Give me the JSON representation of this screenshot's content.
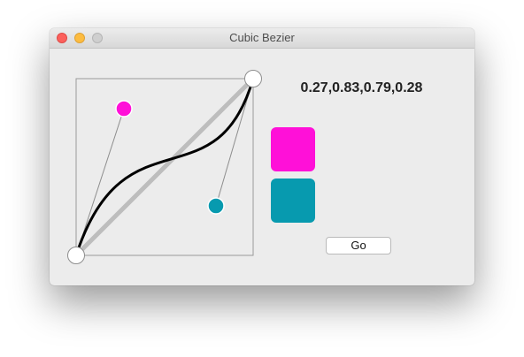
{
  "window": {
    "title": "Cubic Bezier"
  },
  "bezier": {
    "code": "0.27,0.83,0.79,0.28",
    "p1": [
      0.27,
      0.83
    ],
    "p2": [
      0.79,
      0.28
    ]
  },
  "colors": {
    "p1_handle": "#ff10d8",
    "p2_handle": "#079aaf",
    "swatch_top": "#ff10d8",
    "swatch_bottom": "#079aaf"
  },
  "buttons": {
    "go_label": "Go"
  }
}
